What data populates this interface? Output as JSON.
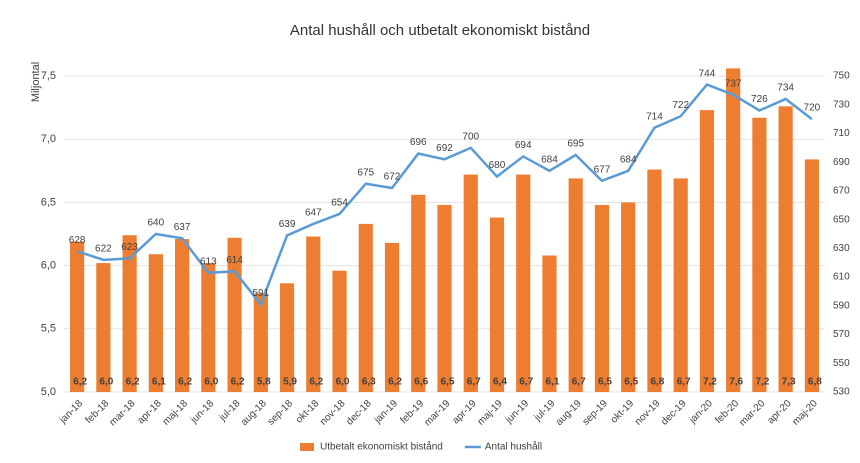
{
  "chart_data": {
    "type": "combo",
    "title": "Antal hushåll och utbetalt ekonomiskt bistånd",
    "ylabel": "Miljontal",
    "categories": [
      "jan-18",
      "feb-18",
      "mar-18",
      "apr-18",
      "maj-18",
      "jun-18",
      "jul-18",
      "aug-18",
      "sep-18",
      "okt-18",
      "nov-18",
      "dec-18",
      "jan-19",
      "feb-19",
      "mar-19",
      "apr-19",
      "maj-19",
      "jun-19",
      "jul-19",
      "aug-19",
      "sep-19",
      "okt-19",
      "nov-19",
      "dec-19",
      "jan-20",
      "feb-20",
      "mar-20",
      "apr-20",
      "maj-20"
    ],
    "series": [
      {
        "name": "Utbetalt ekonomiskt bistånd",
        "type": "bar",
        "color": "#ed7d31",
        "values": [
          6.19,
          6.02,
          6.24,
          6.09,
          6.21,
          6.02,
          6.22,
          5.78,
          5.86,
          6.23,
          5.96,
          6.33,
          6.18,
          6.56,
          6.48,
          6.72,
          6.38,
          6.72,
          6.08,
          6.69,
          6.48,
          6.5,
          6.76,
          6.69,
          7.23,
          7.56,
          7.17,
          7.26,
          6.84
        ],
        "value_labels": [
          "6,2",
          "6,0",
          "6,2",
          "6,1",
          "6,2",
          "6,0",
          "6,2",
          "5,8",
          "5,9",
          "6,2",
          "6,0",
          "6,3",
          "6,2",
          "6,6",
          "6,5",
          "6,7",
          "6,4",
          "6,7",
          "6,1",
          "6,7",
          "6,5",
          "6,5",
          "6,8",
          "6,7",
          "7,2",
          "7,6",
          "7,2",
          "7,3",
          "6,8"
        ]
      },
      {
        "name": "Antal hushåll",
        "type": "line",
        "axis": "y2",
        "color": "#5b9bd5",
        "values": [
          628,
          622,
          623,
          640,
          637,
          613,
          614,
          591,
          639,
          647,
          654,
          675,
          672,
          696,
          692,
          700,
          680,
          694,
          684,
          695,
          677,
          684,
          714,
          722,
          744,
          737,
          726,
          734,
          720
        ]
      }
    ],
    "ylim": [
      5.0,
      7.5
    ],
    "yticks": [
      {
        "value": 5.0,
        "label": "5,0"
      },
      {
        "value": 5.5,
        "label": "5,5"
      },
      {
        "value": 6.0,
        "label": "6,0"
      },
      {
        "value": 6.5,
        "label": "6,5"
      },
      {
        "value": 7.0,
        "label": "7,0"
      },
      {
        "value": 7.5,
        "label": "7,5"
      }
    ],
    "y2lim": [
      530,
      750
    ],
    "y2ticks": [
      530,
      550,
      570,
      590,
      610,
      630,
      650,
      670,
      690,
      710,
      730,
      750
    ],
    "grid": true,
    "legend": "bottom"
  }
}
